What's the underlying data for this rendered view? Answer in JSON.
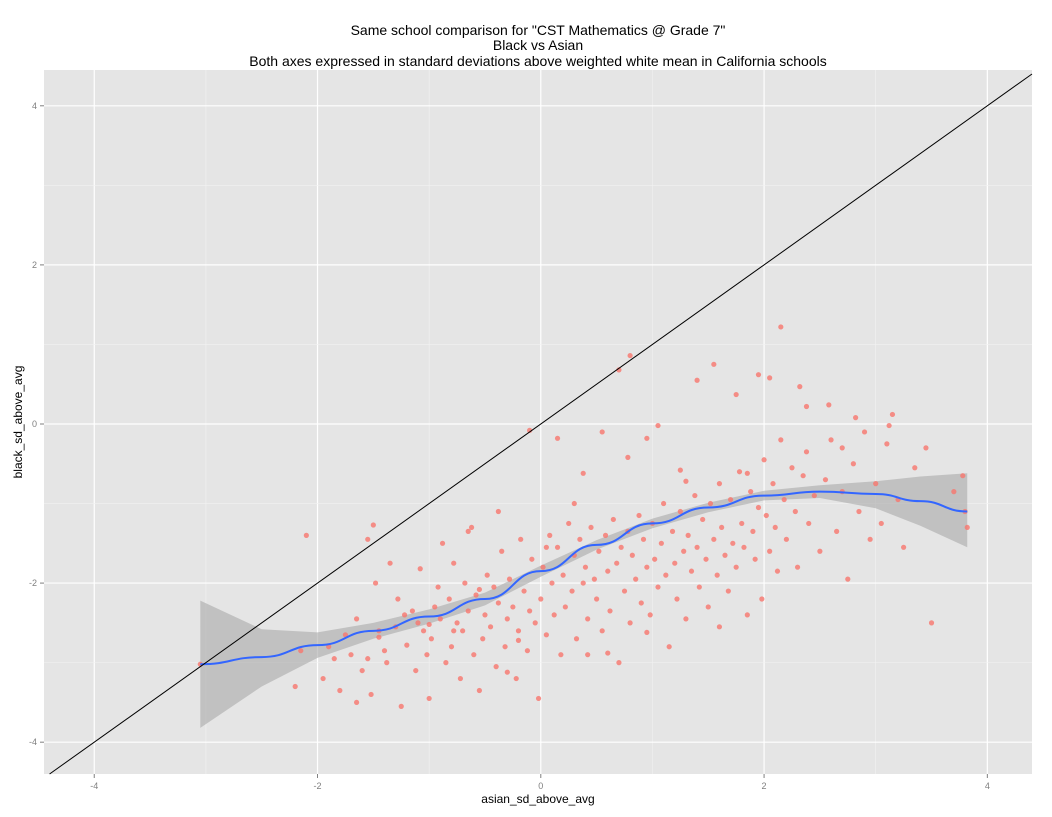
{
  "chart_data": {
    "type": "scatter",
    "title": [
      "Same school comparison for \"CST Mathematics @ Grade 7\"",
      "Black vs Asian",
      "Both axes expressed in standard deviations above weighted white mean in California schools"
    ],
    "xlabel": "asian_sd_above_avg",
    "ylabel": "black_sd_above_avg",
    "xlim": [
      -4.45,
      4.4
    ],
    "ylim": [
      -4.4,
      4.45
    ],
    "x_ticks": [
      -4,
      -2,
      0,
      2,
      4
    ],
    "y_ticks": [
      -4,
      -2,
      0,
      2,
      4
    ],
    "grid": true,
    "reference_line": {
      "slope": 1,
      "intercept": 0,
      "color": "#000000"
    },
    "point_color": "#f8766d",
    "smooth_color": "#3366ff",
    "band_color": "#a8a8a8",
    "panel_background": "#e5e5e5",
    "points": [
      [
        -3.05,
        -3.02
      ],
      [
        -2.2,
        -3.3
      ],
      [
        -2.15,
        -2.85
      ],
      [
        -2.1,
        -1.4
      ],
      [
        -1.95,
        -3.2
      ],
      [
        -1.9,
        -2.8
      ],
      [
        -1.85,
        -2.95
      ],
      [
        -1.8,
        -3.35
      ],
      [
        -1.75,
        -2.65
      ],
      [
        -1.7,
        -2.9
      ],
      [
        -1.65,
        -2.45
      ],
      [
        -1.65,
        -3.5
      ],
      [
        -1.6,
        -3.1
      ],
      [
        -1.55,
        -2.95
      ],
      [
        -1.52,
        -3.4
      ],
      [
        -1.55,
        -1.45
      ],
      [
        -1.5,
        -1.27
      ],
      [
        -1.48,
        -2.0
      ],
      [
        -1.45,
        -2.6
      ],
      [
        -1.4,
        -2.85
      ],
      [
        -1.38,
        -3.0
      ],
      [
        -1.35,
        -1.75
      ],
      [
        -1.3,
        -2.55
      ],
      [
        -1.28,
        -2.2
      ],
      [
        -1.25,
        -3.55
      ],
      [
        -1.22,
        -2.4
      ],
      [
        -1.2,
        -2.78
      ],
      [
        -1.15,
        -2.35
      ],
      [
        -1.12,
        -3.1
      ],
      [
        -1.1,
        -2.5
      ],
      [
        -1.08,
        -1.82
      ],
      [
        -1.05,
        -2.6
      ],
      [
        -1.02,
        -2.9
      ],
      [
        -1.0,
        -3.45
      ],
      [
        -0.98,
        -2.7
      ],
      [
        -0.95,
        -2.3
      ],
      [
        -0.92,
        -2.05
      ],
      [
        -0.9,
        -2.45
      ],
      [
        -0.88,
        -1.5
      ],
      [
        -0.85,
        -3.0
      ],
      [
        -0.82,
        -2.2
      ],
      [
        -0.8,
        -2.8
      ],
      [
        -0.78,
        -1.75
      ],
      [
        -0.75,
        -2.5
      ],
      [
        -0.72,
        -3.2
      ],
      [
        -0.7,
        -2.6
      ],
      [
        -0.68,
        -2.0
      ],
      [
        -0.65,
        -2.35
      ],
      [
        -0.62,
        -1.3
      ],
      [
        -0.6,
        -2.9
      ],
      [
        -0.58,
        -2.15
      ],
      [
        -0.55,
        -3.35
      ],
      [
        -0.52,
        -2.7
      ],
      [
        -0.5,
        -2.4
      ],
      [
        -0.48,
        -1.9
      ],
      [
        -0.45,
        -2.55
      ],
      [
        -0.42,
        -2.05
      ],
      [
        -0.4,
        -3.05
      ],
      [
        -0.38,
        -2.25
      ],
      [
        -0.35,
        -1.6
      ],
      [
        -0.32,
        -2.8
      ],
      [
        -0.3,
        -2.45
      ],
      [
        -0.28,
        -1.95
      ],
      [
        -0.25,
        -2.3
      ],
      [
        -0.22,
        -3.2
      ],
      [
        -0.2,
        -2.6
      ],
      [
        -0.18,
        -1.45
      ],
      [
        -0.15,
        -2.1
      ],
      [
        -0.12,
        -2.85
      ],
      [
        -0.1,
        -2.35
      ],
      [
        -0.08,
        -1.7
      ],
      [
        -0.05,
        -2.5
      ],
      [
        -0.02,
        -3.45
      ],
      [
        0.0,
        -2.2
      ],
      [
        0.02,
        -1.8
      ],
      [
        0.05,
        -2.65
      ],
      [
        0.08,
        -1.4
      ],
      [
        0.1,
        -2.0
      ],
      [
        0.12,
        -2.4
      ],
      [
        0.15,
        -1.55
      ],
      [
        0.18,
        -2.9
      ],
      [
        0.2,
        -1.9
      ],
      [
        0.22,
        -2.3
      ],
      [
        0.25,
        -1.25
      ],
      [
        0.28,
        -2.1
      ],
      [
        0.3,
        -1.65
      ],
      [
        0.32,
        -2.7
      ],
      [
        0.35,
        -1.45
      ],
      [
        0.38,
        -2.0
      ],
      [
        0.4,
        -1.8
      ],
      [
        0.42,
        -2.45
      ],
      [
        0.45,
        -1.3
      ],
      [
        0.48,
        -1.95
      ],
      [
        0.5,
        -2.2
      ],
      [
        0.52,
        -1.6
      ],
      [
        0.55,
        -2.6
      ],
      [
        0.58,
        -1.4
      ],
      [
        0.6,
        -1.85
      ],
      [
        0.62,
        -2.35
      ],
      [
        0.65,
        -1.2
      ],
      [
        0.68,
        -1.75
      ],
      [
        0.7,
        -3.0
      ],
      [
        0.72,
        -1.55
      ],
      [
        0.75,
        -2.1
      ],
      [
        0.78,
        -1.35
      ],
      [
        0.8,
        -2.5
      ],
      [
        0.82,
        -1.65
      ],
      [
        0.85,
        -1.95
      ],
      [
        0.88,
        -1.15
      ],
      [
        0.9,
        -2.25
      ],
      [
        0.92,
        -1.45
      ],
      [
        0.95,
        -1.8
      ],
      [
        0.98,
        -2.4
      ],
      [
        1.0,
        -1.25
      ],
      [
        1.02,
        -1.7
      ],
      [
        1.05,
        -2.05
      ],
      [
        1.08,
        -1.5
      ],
      [
        1.1,
        -1.0
      ],
      [
        1.12,
        -1.9
      ],
      [
        1.15,
        -2.8
      ],
      [
        1.18,
        -1.35
      ],
      [
        1.2,
        -1.75
      ],
      [
        1.22,
        -2.2
      ],
      [
        1.25,
        -1.1
      ],
      [
        1.28,
        -1.6
      ],
      [
        1.3,
        -2.45
      ],
      [
        1.32,
        -1.4
      ],
      [
        1.35,
        -1.85
      ],
      [
        1.38,
        -0.9
      ],
      [
        1.4,
        -1.55
      ],
      [
        1.42,
        -2.05
      ],
      [
        1.45,
        -1.2
      ],
      [
        1.48,
        -1.7
      ],
      [
        1.5,
        -2.3
      ],
      [
        1.52,
        -1.0
      ],
      [
        1.55,
        -1.45
      ],
      [
        1.58,
        -1.9
      ],
      [
        1.6,
        -0.75
      ],
      [
        1.62,
        -1.3
      ],
      [
        1.65,
        -1.65
      ],
      [
        1.68,
        -2.1
      ],
      [
        1.7,
        -0.95
      ],
      [
        1.72,
        -1.5
      ],
      [
        1.75,
        -1.8
      ],
      [
        1.78,
        -0.6
      ],
      [
        1.8,
        -1.25
      ],
      [
        1.82,
        -1.55
      ],
      [
        1.85,
        -2.4
      ],
      [
        1.88,
        -0.85
      ],
      [
        1.9,
        -1.35
      ],
      [
        1.92,
        -1.7
      ],
      [
        1.95,
        -1.05
      ],
      [
        1.98,
        -2.2
      ],
      [
        2.0,
        -0.45
      ],
      [
        2.02,
        -1.15
      ],
      [
        2.05,
        -1.6
      ],
      [
        2.08,
        -0.75
      ],
      [
        2.1,
        -1.3
      ],
      [
        2.12,
        -1.85
      ],
      [
        2.15,
        -0.2
      ],
      [
        2.18,
        -0.95
      ],
      [
        2.2,
        -1.45
      ],
      [
        2.25,
        -0.55
      ],
      [
        2.28,
        -1.1
      ],
      [
        2.3,
        -1.8
      ],
      [
        2.35,
        -0.65
      ],
      [
        2.38,
        -0.35
      ],
      [
        2.4,
        -1.25
      ],
      [
        2.45,
        -0.9
      ],
      [
        2.5,
        -1.6
      ],
      [
        2.55,
        -0.7
      ],
      [
        2.6,
        -0.2
      ],
      [
        2.65,
        -1.35
      ],
      [
        2.7,
        -0.85
      ],
      [
        2.75,
        -1.95
      ],
      [
        2.8,
        -0.5
      ],
      [
        2.85,
        -1.1
      ],
      [
        2.9,
        -0.1
      ],
      [
        2.95,
        -1.45
      ],
      [
        3.0,
        -0.75
      ],
      [
        3.05,
        -1.25
      ],
      [
        3.1,
        -0.25
      ],
      [
        3.15,
        0.12
      ],
      [
        3.2,
        -0.95
      ],
      [
        3.25,
        -1.55
      ],
      [
        3.35,
        -0.55
      ],
      [
        3.45,
        -0.3
      ],
      [
        3.5,
        -2.5
      ],
      [
        3.7,
        -0.85
      ],
      [
        3.78,
        -0.65
      ],
      [
        3.82,
        -1.3
      ],
      [
        3.8,
        -1.1
      ],
      [
        -0.1,
        -0.08
      ],
      [
        0.7,
        0.68
      ],
      [
        0.8,
        0.86
      ],
      [
        2.15,
        1.22
      ],
      [
        1.55,
        0.75
      ],
      [
        1.95,
        0.62
      ],
      [
        2.05,
        0.58
      ],
      [
        1.75,
        0.37
      ],
      [
        1.4,
        0.55
      ],
      [
        2.32,
        0.47
      ],
      [
        2.38,
        0.22
      ],
      [
        2.58,
        0.24
      ],
      [
        2.82,
        0.08
      ],
      [
        3.12,
        -0.02
      ],
      [
        1.25,
        -0.58
      ],
      [
        1.05,
        -0.02
      ],
      [
        0.95,
        -0.18
      ],
      [
        0.55,
        -0.1
      ],
      [
        0.78,
        -0.42
      ],
      [
        0.38,
        -0.62
      ],
      [
        0.15,
        -0.18
      ],
      [
        -0.55,
        -2.08
      ],
      [
        -1.0,
        -2.52
      ],
      [
        -1.45,
        -2.68
      ],
      [
        -0.3,
        -3.12
      ],
      [
        0.6,
        -2.88
      ],
      [
        0.95,
        -2.62
      ],
      [
        1.6,
        -2.55
      ],
      [
        -0.65,
        -1.35
      ],
      [
        -0.38,
        -1.1
      ],
      [
        0.05,
        -1.55
      ],
      [
        0.3,
        -1.0
      ],
      [
        1.3,
        -0.72
      ],
      [
        1.85,
        -0.62
      ],
      [
        2.7,
        -0.3
      ],
      [
        -0.78,
        -2.6
      ],
      [
        -0.2,
        -2.72
      ],
      [
        0.42,
        -2.9
      ]
    ],
    "smooth": [
      [
        -3.05,
        -3.02
      ],
      [
        -2.5,
        -2.93
      ],
      [
        -2.0,
        -2.78
      ],
      [
        -1.5,
        -2.6
      ],
      [
        -1.0,
        -2.42
      ],
      [
        -0.5,
        -2.2
      ],
      [
        0.0,
        -1.85
      ],
      [
        0.5,
        -1.52
      ],
      [
        1.0,
        -1.25
      ],
      [
        1.5,
        -1.05
      ],
      [
        2.0,
        -0.9
      ],
      [
        2.5,
        -0.85
      ],
      [
        3.0,
        -0.88
      ],
      [
        3.4,
        -0.97
      ],
      [
        3.82,
        -1.1
      ]
    ],
    "band_upper": [
      [
        -3.05,
        -2.22
      ],
      [
        -2.5,
        -2.58
      ],
      [
        -2.0,
        -2.62
      ],
      [
        -1.5,
        -2.5
      ],
      [
        -1.0,
        -2.33
      ],
      [
        -0.5,
        -2.12
      ],
      [
        0.0,
        -1.78
      ],
      [
        0.5,
        -1.46
      ],
      [
        1.0,
        -1.19
      ],
      [
        1.5,
        -0.99
      ],
      [
        2.0,
        -0.84
      ],
      [
        2.5,
        -0.77
      ],
      [
        3.0,
        -0.72
      ],
      [
        3.4,
        -0.66
      ],
      [
        3.82,
        -0.62
      ]
    ],
    "band_lower": [
      [
        -3.05,
        -3.82
      ],
      [
        -2.5,
        -3.3
      ],
      [
        -2.0,
        -2.94
      ],
      [
        -1.5,
        -2.7
      ],
      [
        -1.0,
        -2.51
      ],
      [
        -0.5,
        -2.28
      ],
      [
        0.0,
        -1.92
      ],
      [
        0.5,
        -1.58
      ],
      [
        1.0,
        -1.31
      ],
      [
        1.5,
        -1.11
      ],
      [
        2.0,
        -0.96
      ],
      [
        2.5,
        -0.93
      ],
      [
        3.0,
        -1.06
      ],
      [
        3.4,
        -1.28
      ],
      [
        3.82,
        -1.55
      ]
    ]
  }
}
